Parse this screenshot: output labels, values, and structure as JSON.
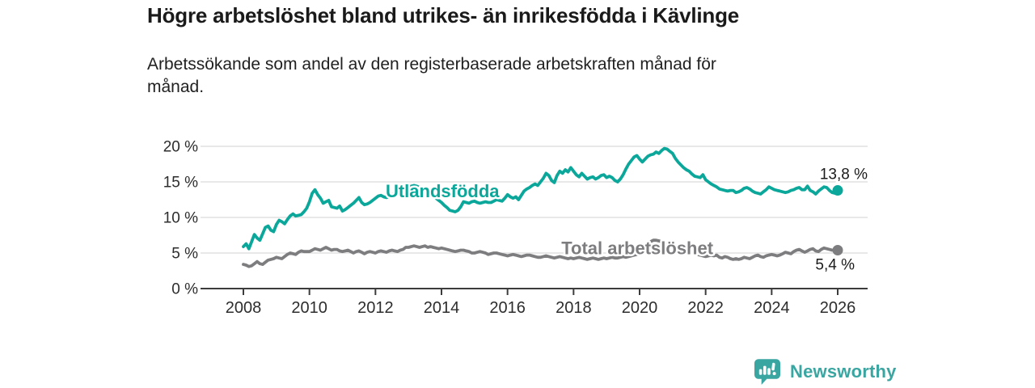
{
  "header": {
    "title": "Högre arbetslöshet bland utrikes- än inrikesfödda i Kävlinge",
    "subtitle": "Arbetssökande som andel av den registerbaserade arbetskraften månad för\nmånad."
  },
  "footer": {
    "brand": "Newsworthy",
    "logo_icon": "bar-chart-speech-bubble-icon"
  },
  "colors": {
    "background": "#ffffff",
    "accent_teal": "#0ba79a",
    "series_gray": "#7d7d80",
    "grid": "#d9d9d9",
    "axis": "#3c3c3c",
    "tick_text": "#2d2d2d",
    "annotation_text": "#1a1a1a",
    "brand_teal": "#3aa6a2"
  },
  "chart_data": {
    "type": "line",
    "title": "Högre arbetslöshet bland utrikes- än inrikesfödda i Kävlinge",
    "subtitle": "Arbetssökande som andel av den registerbaserade arbetskraften månad för månad.",
    "x_unit": "månad",
    "x_start_year": 2008,
    "x_points_per_year": 12,
    "ylim": [
      0,
      20
    ],
    "grid": true,
    "legend_position": "inline-labels",
    "x_ticks": [
      {
        "label": "2008",
        "value": 2008
      },
      {
        "label": "2010",
        "value": 2010
      },
      {
        "label": "2012",
        "value": 2012
      },
      {
        "label": "2014",
        "value": 2014
      },
      {
        "label": "2016",
        "value": 2016
      },
      {
        "label": "2018",
        "value": 2018
      },
      {
        "label": "2020",
        "value": 2020
      },
      {
        "label": "2022",
        "value": 2022
      },
      {
        "label": "2024",
        "value": 2024
      },
      {
        "label": "2026",
        "value": 2026
      }
    ],
    "y_ticks": [
      {
        "label": "0 %",
        "value": 0
      },
      {
        "label": "5 %",
        "value": 5
      },
      {
        "label": "10 %",
        "value": 10
      },
      {
        "label": "15 %",
        "value": 15
      },
      {
        "label": "20 %",
        "value": 20
      }
    ],
    "series": [
      {
        "key": "utlandsfodda",
        "name": "Utlandsfödda",
        "color": "#0ba79a",
        "end_value": 13.8,
        "end_label": "13,8 %",
        "end_label_pos": "above",
        "label_at": {
          "year": 2014.03,
          "value": 13.7
        },
        "values": [
          5.9,
          6.3,
          5.6,
          6.6,
          7.6,
          7.1,
          6.8,
          7.7,
          8.6,
          8.8,
          8.2,
          8.0,
          9.0,
          9.6,
          9.4,
          9.1,
          9.7,
          10.2,
          10.5,
          10.2,
          10.3,
          10.4,
          10.8,
          11.3,
          12.2,
          13.4,
          13.9,
          13.2,
          12.7,
          12.0,
          12.2,
          12.4,
          11.5,
          11.4,
          11.3,
          11.6,
          10.9,
          11.1,
          11.4,
          11.7,
          12.0,
          12.4,
          12.8,
          12.1,
          11.8,
          11.9,
          12.1,
          12.4,
          12.7,
          13.0,
          13.1,
          12.9,
          12.8,
          12.9,
          13.2,
          13.3,
          13.6,
          13.7,
          13.9,
          14.1,
          14.2,
          14.4,
          14.5,
          14.4,
          14.2,
          14.0,
          13.8,
          13.6,
          13.3,
          13.0,
          12.7,
          12.4,
          12.1,
          11.7,
          11.4,
          11.0,
          10.9,
          10.8,
          11.0,
          11.5,
          12.2,
          12.1,
          12.0,
          12.2,
          12.3,
          12.1,
          12.0,
          12.1,
          12.2,
          12.1,
          12.1,
          12.3,
          12.5,
          12.4,
          12.3,
          12.7,
          13.2,
          12.9,
          12.7,
          12.9,
          12.5,
          13.1,
          13.7,
          14.0,
          14.2,
          14.5,
          14.7,
          14.5,
          15.0,
          15.5,
          16.2,
          15.9,
          15.2,
          14.9,
          15.9,
          16.5,
          16.2,
          16.7,
          16.4,
          17.0,
          16.5,
          16.0,
          15.7,
          16.2,
          15.8,
          15.4,
          15.6,
          15.7,
          15.4,
          15.6,
          15.9,
          16.0,
          15.6,
          15.8,
          15.6,
          15.2,
          15.0,
          15.4,
          16.0,
          16.8,
          17.5,
          18.0,
          18.5,
          18.7,
          18.2,
          17.8,
          18.2,
          18.6,
          18.8,
          18.9,
          19.2,
          19.0,
          19.4,
          19.7,
          19.6,
          19.3,
          19.0,
          18.3,
          17.8,
          17.4,
          17.0,
          16.7,
          16.5,
          16.1,
          15.8,
          15.7,
          15.6,
          16.0,
          15.3,
          15.0,
          14.7,
          14.5,
          14.3,
          14.0,
          13.9,
          13.8,
          13.7,
          13.8,
          13.8,
          13.5,
          13.6,
          13.8,
          14.1,
          14.2,
          14.0,
          13.7,
          13.5,
          13.4,
          13.3,
          13.6,
          13.9,
          14.3,
          14.1,
          13.9,
          13.8,
          13.7,
          13.6,
          13.5,
          13.6,
          13.8,
          13.9,
          14.1,
          14.2,
          13.9,
          13.9,
          14.4,
          13.8,
          13.6,
          13.3,
          13.7,
          14.0,
          14.3,
          14.2,
          13.8,
          13.5,
          13.4,
          13.8
        ]
      },
      {
        "key": "total",
        "name": "Total arbetslöshet",
        "color": "#7d7d80",
        "end_value": 5.4,
        "end_label": "5,4 %",
        "end_label_pos": "below",
        "label_at": {
          "year": 2019.93,
          "value": 5.7
        },
        "values": [
          3.4,
          3.3,
          3.1,
          3.2,
          3.5,
          3.8,
          3.5,
          3.4,
          3.7,
          4.0,
          4.1,
          4.2,
          4.4,
          4.3,
          4.2,
          4.5,
          4.8,
          5.0,
          4.9,
          4.8,
          5.1,
          5.3,
          5.2,
          5.2,
          5.2,
          5.4,
          5.6,
          5.5,
          5.4,
          5.6,
          5.8,
          5.6,
          5.4,
          5.5,
          5.5,
          5.3,
          5.2,
          5.3,
          5.4,
          5.2,
          5.0,
          5.2,
          5.3,
          5.1,
          4.9,
          5.1,
          5.2,
          5.1,
          5.0,
          5.2,
          5.3,
          5.2,
          5.1,
          5.3,
          5.4,
          5.3,
          5.2,
          5.4,
          5.5,
          5.8,
          5.8,
          5.9,
          6.0,
          5.9,
          5.8,
          5.9,
          6.0,
          5.8,
          5.9,
          5.8,
          5.7,
          5.6,
          5.7,
          5.6,
          5.5,
          5.4,
          5.3,
          5.2,
          5.3,
          5.4,
          5.4,
          5.3,
          5.2,
          5.0,
          5.0,
          5.1,
          5.2,
          5.1,
          5.0,
          4.8,
          4.9,
          5.0,
          5.0,
          4.9,
          4.8,
          4.7,
          4.6,
          4.7,
          4.8,
          4.7,
          4.6,
          4.5,
          4.6,
          4.7,
          4.7,
          4.6,
          4.5,
          4.4,
          4.4,
          4.5,
          4.6,
          4.5,
          4.4,
          4.3,
          4.4,
          4.5,
          4.4,
          4.3,
          4.2,
          4.3,
          4.2,
          4.3,
          4.4,
          4.3,
          4.2,
          4.1,
          4.2,
          4.3,
          4.2,
          4.1,
          4.2,
          4.3,
          4.2,
          4.3,
          4.4,
          4.3,
          4.3,
          4.4,
          4.5,
          4.4,
          4.5,
          4.6,
          4.7,
          4.8,
          5.0,
          5.2,
          5.6,
          6.2,
          6.6,
          6.8,
          6.8,
          6.7,
          6.6,
          6.4,
          6.2,
          6.0,
          5.9,
          5.8,
          5.7,
          5.5,
          5.4,
          5.2,
          5.1,
          5.0,
          4.9,
          4.8,
          4.7,
          4.6,
          4.5,
          4.6,
          4.7,
          4.6,
          4.7,
          4.4,
          4.3,
          4.5,
          4.4,
          4.2,
          4.1,
          4.2,
          4.1,
          4.2,
          4.4,
          4.3,
          4.2,
          4.4,
          4.6,
          4.7,
          4.5,
          4.4,
          4.6,
          4.7,
          4.8,
          4.7,
          4.6,
          4.7,
          4.9,
          5.1,
          5.0,
          4.9,
          5.2,
          5.4,
          5.5,
          5.3,
          5.1,
          5.3,
          5.5,
          5.6,
          5.3,
          5.2,
          5.5,
          5.7,
          5.6,
          5.5,
          5.4,
          5.4,
          5.4
        ]
      }
    ]
  }
}
